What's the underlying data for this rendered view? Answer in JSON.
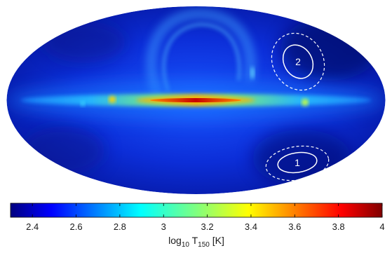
{
  "map": {
    "projection": "mollweide",
    "coordinate_system": "galactic",
    "colormap": "jet",
    "regions": [
      {
        "label": "1",
        "location": "lower-right"
      },
      {
        "label": "2",
        "location": "upper-right"
      }
    ]
  },
  "colorbar": {
    "min": 2.3,
    "max": 4.0,
    "ticks": [
      "2.4",
      "2.6",
      "2.8",
      "3",
      "3.2",
      "3.4",
      "3.6",
      "3.8",
      "4"
    ],
    "label_prefix": "log",
    "label_sub1": "10",
    "label_mid": " T",
    "label_sub2": "150",
    "label_unit": " [K]"
  }
}
